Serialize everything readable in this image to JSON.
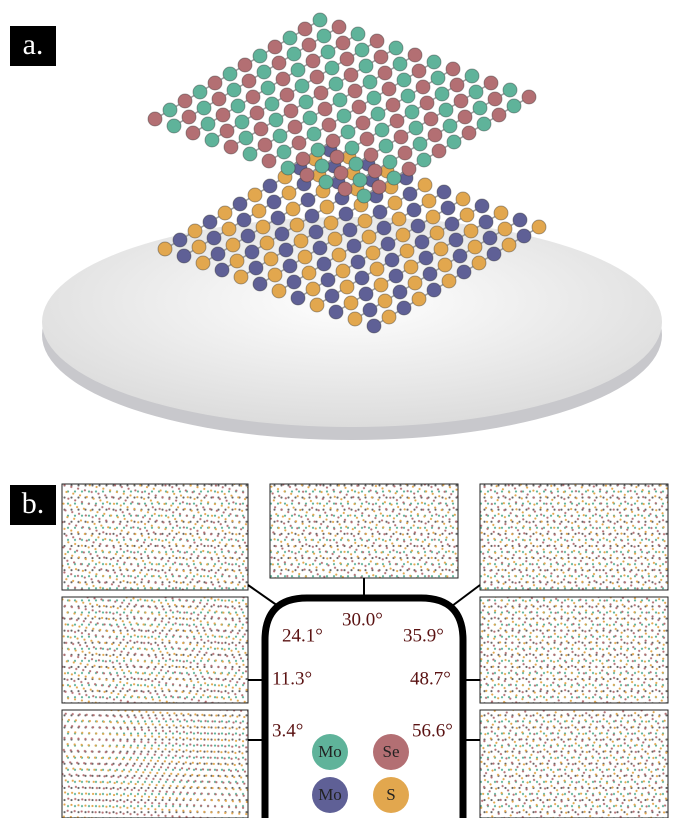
{
  "panel_a": {
    "label": "a."
  },
  "panel_b": {
    "label": "b.",
    "angles": [
      "30.0°",
      "24.1°",
      "35.9°",
      "11.3°",
      "48.7°",
      "3.4°",
      "56.6°"
    ],
    "legend": [
      "Mo",
      "Se",
      "Mo",
      "S"
    ]
  }
}
